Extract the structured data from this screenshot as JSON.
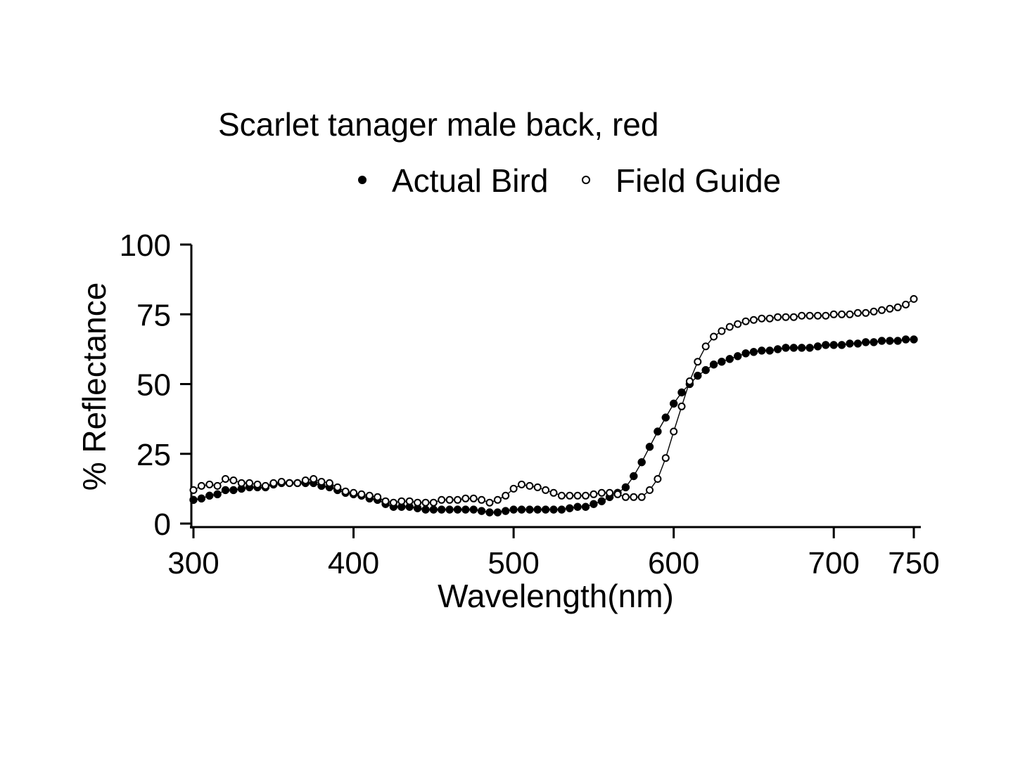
{
  "chart_data": {
    "type": "scatter",
    "title": "Scarlet tanager male back, red",
    "xlabel": "Wavelength(nm)",
    "ylabel": "% Reflectance",
    "xlim": [
      300,
      750
    ],
    "ylim": [
      0,
      100
    ],
    "xticks": [
      300,
      400,
      500,
      600,
      700,
      750
    ],
    "yticks": [
      0,
      25,
      50,
      75,
      100
    ],
    "grid": false,
    "legend": "top",
    "x": [
      300,
      305,
      310,
      315,
      320,
      325,
      330,
      335,
      340,
      345,
      350,
      355,
      360,
      365,
      370,
      375,
      380,
      385,
      390,
      395,
      400,
      405,
      410,
      415,
      420,
      425,
      430,
      435,
      440,
      445,
      450,
      455,
      460,
      465,
      470,
      475,
      480,
      485,
      490,
      495,
      500,
      505,
      510,
      515,
      520,
      525,
      530,
      535,
      540,
      545,
      550,
      555,
      560,
      565,
      570,
      575,
      580,
      585,
      590,
      595,
      600,
      605,
      610,
      615,
      620,
      625,
      630,
      635,
      640,
      645,
      650,
      655,
      660,
      665,
      670,
      675,
      680,
      685,
      690,
      695,
      700,
      705,
      710,
      715,
      720,
      725,
      730,
      735,
      740,
      745,
      750
    ],
    "series": [
      {
        "name": "Actual Bird",
        "marker": "filled-circle",
        "color": "#000000",
        "values": [
          8.5,
          9,
          10,
          10.5,
          12,
          12,
          12.5,
          13,
          13,
          13,
          14,
          14.5,
          14.5,
          14.5,
          14.5,
          14.5,
          13.5,
          13,
          12,
          11,
          10.5,
          10,
          9,
          8.5,
          7,
          6,
          6,
          6,
          5.5,
          5,
          5,
          5,
          5,
          5,
          5,
          5,
          4.5,
          4,
          4,
          4.5,
          5,
          5,
          5,
          5,
          5,
          5,
          5,
          5.5,
          6,
          6,
          7,
          8,
          9.5,
          11,
          13,
          17,
          22,
          27.5,
          33,
          38,
          43,
          47,
          50,
          53,
          55,
          57,
          58,
          59,
          60,
          61,
          61.5,
          62,
          62,
          62.5,
          63,
          63,
          63,
          63,
          63.5,
          64,
          64,
          64,
          64.5,
          64.5,
          65,
          65,
          65.5,
          65.5,
          65.5,
          66,
          66
        ]
      },
      {
        "name": "Field Guide",
        "marker": "open-circle",
        "color": "#000000",
        "values": [
          12,
          13.5,
          14,
          13.5,
          16,
          15.5,
          14.5,
          14.5,
          14,
          13.5,
          14.5,
          15,
          14.5,
          14.5,
          15.5,
          16,
          15,
          14.5,
          13,
          11.5,
          11,
          10.5,
          10,
          9.5,
          8,
          7.5,
          8,
          8,
          7.5,
          7.5,
          7.5,
          8.5,
          8.5,
          8.5,
          9,
          9,
          8.5,
          7.5,
          8.5,
          10,
          12.5,
          14,
          13.5,
          13,
          12,
          11,
          10,
          10,
          10,
          10,
          10.5,
          11,
          11,
          10.5,
          9.5,
          9.5,
          9.5,
          12,
          16,
          23.5,
          33,
          42,
          51,
          58,
          63.5,
          67,
          69,
          70.5,
          71.5,
          72.5,
          73,
          73.5,
          73.5,
          74,
          74,
          74,
          74.5,
          74.5,
          74.5,
          74.5,
          75,
          75,
          75,
          75.5,
          75.5,
          76,
          76.5,
          77,
          77.5,
          78.5,
          80.5
        ]
      }
    ]
  }
}
